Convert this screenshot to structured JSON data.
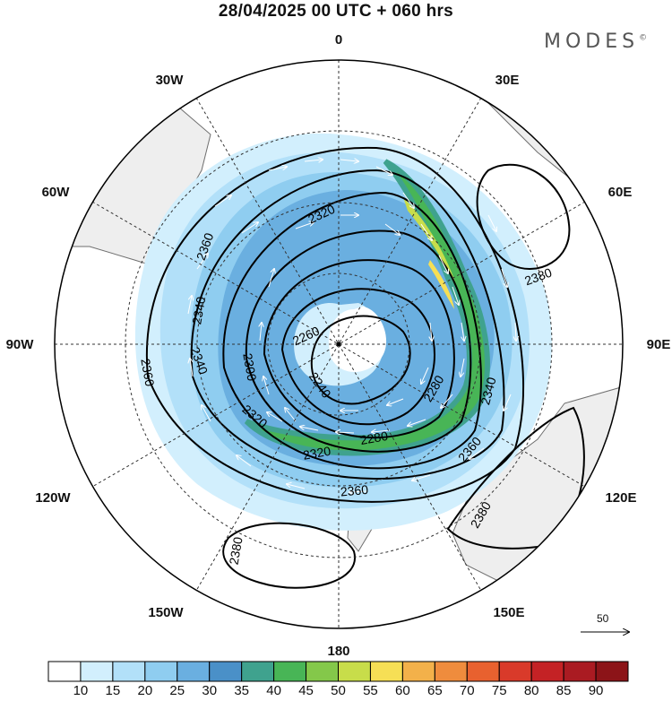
{
  "title": "28/04/2025  00 UTC  + 060 hrs",
  "brand": "MODES",
  "brand_mark": "©",
  "longitude_labels": {
    "n0": "0",
    "e30": "30E",
    "e60": "60E",
    "e90": "90E",
    "e120": "120E",
    "e150": "150E",
    "s180": "180",
    "w150": "150W",
    "w120": "120W",
    "w90": "90W",
    "w60": "60W",
    "w30": "30W"
  },
  "contour_labels": [
    "2260",
    "2240",
    "2280",
    "2300",
    "2320",
    "2320",
    "2320",
    "2340",
    "2340",
    "2340",
    "2360",
    "2360",
    "2360",
    "2360",
    "2380",
    "2380",
    "2380",
    "2280",
    "2300"
  ],
  "colorbar": {
    "ticks": [
      "10",
      "15",
      "20",
      "25",
      "30",
      "35",
      "40",
      "45",
      "50",
      "55",
      "60",
      "65",
      "70",
      "75",
      "80",
      "85",
      "90"
    ],
    "colors": [
      "#ffffff",
      "#d2effd",
      "#b2e0f9",
      "#8fcdf0",
      "#6aafe0",
      "#4a90c8",
      "#3fa28e",
      "#48b556",
      "#84c84a",
      "#c8dd4a",
      "#f6df55",
      "#f3b14a",
      "#ef8c3d",
      "#e8612f",
      "#d93a2a",
      "#c42225",
      "#aa1b22",
      "#8c1418"
    ]
  },
  "reference_vector": {
    "label": "50"
  },
  "colors": {
    "land": "#eeeeee",
    "coast": "#6f6f6f",
    "graticule": "#333333"
  }
}
